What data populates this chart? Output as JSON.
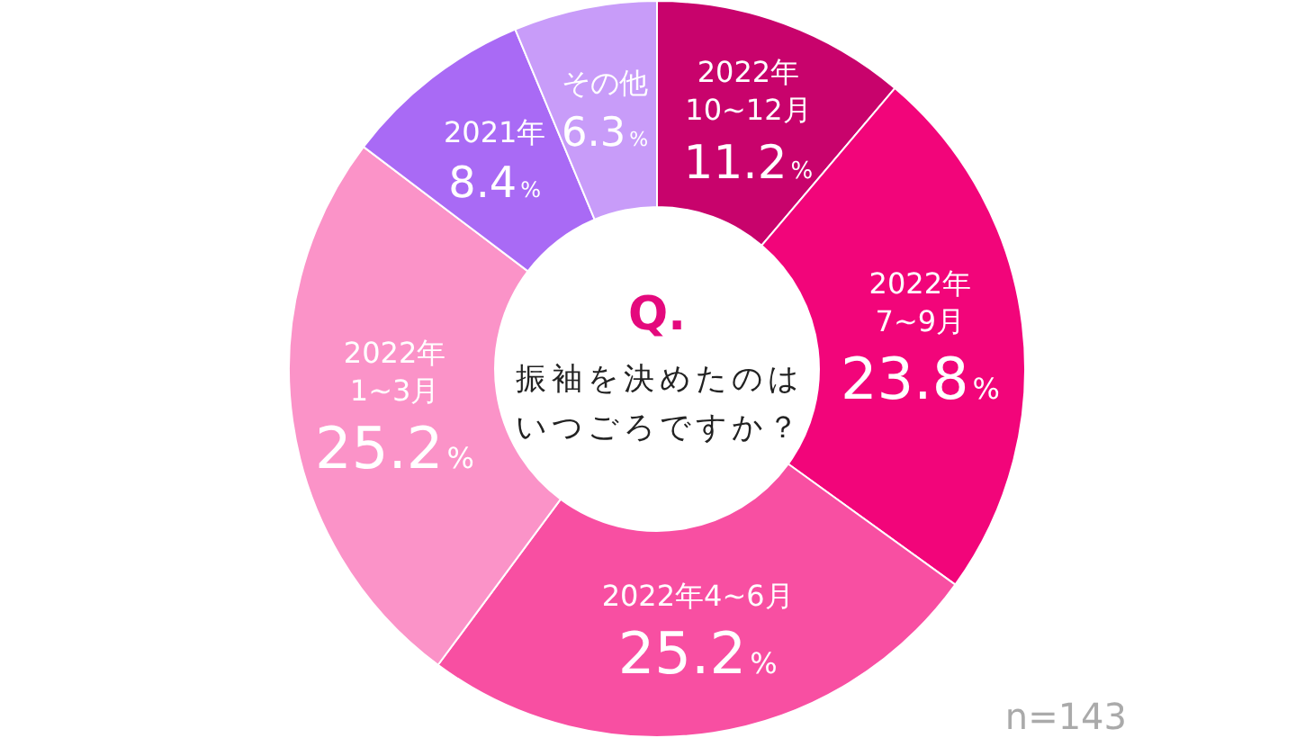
{
  "chart_data": {
    "type": "donut",
    "title": "Q.",
    "subtitle": "振袖を決めたのはいつごろですか？",
    "categories": [
      "2022年\n10~12月",
      "2022年\n7~9月",
      "2022年4~6月",
      "2022年\n1~3月",
      "2021年",
      "その他"
    ],
    "values": [
      11.2,
      23.8,
      25.2,
      25.2,
      8.4,
      6.3
    ],
    "value_labels": [
      "11.2%",
      "23.8%",
      "25.2%",
      "25.2%",
      "8.4%",
      "6.3%"
    ],
    "colors": [
      "#c8036c",
      "#f2057a",
      "#f84fa2",
      "#fb93c8",
      "#a96af5",
      "#c89cf9"
    ],
    "legend": false,
    "annotations": [
      "n=143"
    ]
  }
}
